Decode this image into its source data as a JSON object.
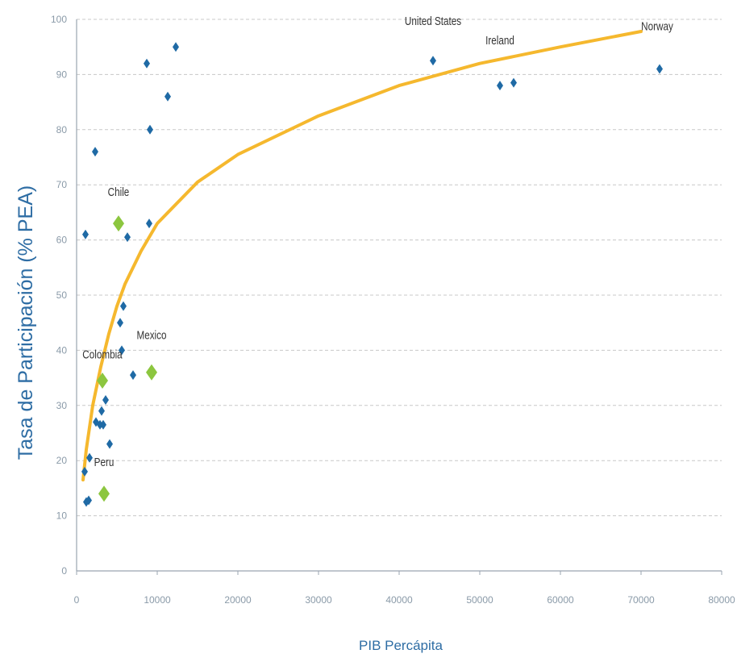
{
  "chart_data": {
    "type": "scatter",
    "title": "",
    "xlabel": "PIB Percápita",
    "ylabel": "Tasa de Participación  (% PEA)",
    "xlim": [
      0,
      80000
    ],
    "ylim": [
      0,
      100
    ],
    "x_ticks": [
      "0",
      "10000",
      "20000",
      "30000",
      "40000",
      "50000",
      "60000",
      "70000",
      "80000"
    ],
    "y_ticks": [
      "0",
      "10",
      "20",
      "30",
      "40",
      "50",
      "60",
      "70",
      "80",
      "90",
      "100"
    ],
    "grid": "horizontal-dashed",
    "colors": {
      "points": "#1f6aa5",
      "highlight": "#8cc63f",
      "trend": "#f5b82e",
      "axis": "#9aa5b1",
      "grid": "#c8c8c8",
      "label": "#2e6da4"
    },
    "series": [
      {
        "points": [
          {
            "x": 1100,
            "y": 61
          },
          {
            "x": 1000,
            "y": 18
          },
          {
            "x": 1200,
            "y": 12.5
          },
          {
            "x": 1500,
            "y": 12.8
          },
          {
            "x": 1600,
            "y": 20.5
          },
          {
            "x": 2300,
            "y": 76
          },
          {
            "x": 2400,
            "y": 27
          },
          {
            "x": 2900,
            "y": 26.5
          },
          {
            "x": 3100,
            "y": 29
          },
          {
            "x": 3300,
            "y": 26.5
          },
          {
            "x": 3600,
            "y": 31
          },
          {
            "x": 4100,
            "y": 23
          },
          {
            "x": 5400,
            "y": 45
          },
          {
            "x": 5600,
            "y": 40
          },
          {
            "x": 5800,
            "y": 48
          },
          {
            "x": 6300,
            "y": 60.5
          },
          {
            "x": 7000,
            "y": 35.5
          },
          {
            "x": 8700,
            "y": 92
          },
          {
            "x": 9000,
            "y": 63
          },
          {
            "x": 9100,
            "y": 80
          },
          {
            "x": 11300,
            "y": 86
          },
          {
            "x": 12300,
            "y": 95
          },
          {
            "x": 44200,
            "y": 92.5
          },
          {
            "x": 52500,
            "y": 88
          },
          {
            "x": 54200,
            "y": 88.5
          },
          {
            "x": 72300,
            "y": 91
          }
        ]
      },
      {
        "points": [
          {
            "x": 5200,
            "y": 63,
            "label": "Chile"
          },
          {
            "x": 3200,
            "y": 34.5,
            "label": "Colombia"
          },
          {
            "x": 9300,
            "y": 36,
            "label": "Mexico"
          },
          {
            "x": 3400,
            "y": 14,
            "label": "Peru"
          }
        ]
      }
    ],
    "annotations": [
      {
        "text": "United States",
        "x": 44200,
        "y": 99
      },
      {
        "text": "Ireland",
        "x": 52500,
        "y": 95.5
      },
      {
        "text": "Norway",
        "x": 72000,
        "y": 98
      },
      {
        "text": "Chile",
        "x": 5200,
        "y": 68
      },
      {
        "text": "Colombia",
        "x": 3200,
        "y": 38.5
      },
      {
        "text": "Mexico",
        "x": 9300,
        "y": 42
      },
      {
        "text": "Peru",
        "x": 3400,
        "y": 19
      }
    ],
    "trendline": {
      "type": "logarithmic",
      "x": [
        800,
        1200,
        2000,
        3000,
        4000,
        5000,
        6000,
        8000,
        10000,
        15000,
        20000,
        30000,
        40000,
        50000,
        60000,
        70000
      ],
      "y": [
        16.5,
        22,
        30,
        37,
        43,
        48,
        52,
        58,
        63,
        70.5,
        75.5,
        82.5,
        88,
        92,
        95,
        97.8
      ]
    }
  }
}
